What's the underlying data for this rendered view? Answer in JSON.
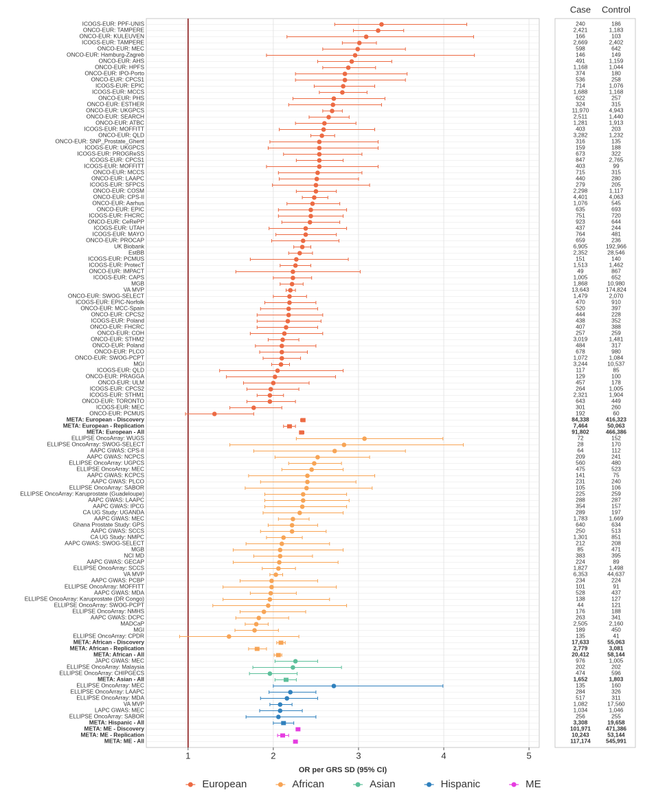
{
  "chart_data": {
    "type": "forest",
    "xlabel": "OR per GRS SD (95% CI)",
    "table_headers": [
      "Case",
      "Control"
    ],
    "xlim": [
      0.51,
      5.12
    ],
    "xticks": [
      1,
      2,
      3,
      4,
      5
    ],
    "reference_line": 1,
    "grid": true,
    "legend": "bottom",
    "series": [
      {
        "name": "European",
        "color": "#ec6a43",
        "summary_rows": 3,
        "labels": [
          "ICOGS-EUR: PPF-UNIS",
          "ONCO-EUR: TAMPERE",
          "ONCO-EUR: KULEUVEN",
          "ICOGS-EUR: TAMPERE",
          "ONCO-EUR: MEC",
          "ONCO-EUR: Hamburg-Zagreb",
          "ONCO-EUR: AHS",
          "ONCO-EUR: HPFS",
          "ONCO-EUR: IPO-Porto",
          "ONCO-EUR: CPCS1",
          "ICOGS-EUR: EPIC",
          "ICOGS-EUR: MCCS",
          "ONCO-EUR: PHS",
          "ONCO-EUR: ESTHER",
          "ONCO-EUR: UKGPCS",
          "ONCO-EUR: SEARCH",
          "ONCO-EUR: ATBC",
          "ICOGS-EUR: MOFFITT",
          "ONCO-EUR: QLD",
          "ONCO-EUR: SNP_Prostate_Ghent",
          "ICOGS-EUR: UKGPCS",
          "ICOGS-EUR: PROGReSS",
          "ICOGS-EUR: CPCS1",
          "ICOGS-EUR: MOFFITT",
          "ONCO-EUR: MCCS",
          "ONCO-EUR: LAAPC",
          "ICOGS-EUR: SFPCS",
          "ONCO-EUR: COSM",
          "ONCO-EUR: CPS-II",
          "ONCO-EUR: Aarhus",
          "ONCO-EUR: EPIC",
          "ICOGS-EUR: FHCRC",
          "ONCO-EUR: CeRePP",
          "ICOGS-EUR: UTAH",
          "ICOGS-EUR: MAYO",
          "ONCO-EUR: PROCAP",
          "UK Biobank",
          "EstBB",
          "ICOGS-EUR: PCMUS",
          "ICOGS-EUR: ProtecT",
          "ONCO-EUR: IMPACT",
          "ICOGS-EUR: CAPS",
          "MGB",
          "VA MVP",
          "ONCO-EUR: SWOG-SELECT",
          "ICOGS-EUR: EPIC-Norfolk",
          "ONCO-EUR: MCC-Spain",
          "ONCO-EUR: CPCS2",
          "ICOGS-EUR: Poland",
          "ONCO-EUR: FHCRC",
          "ONCO-EUR: COH",
          "ONCO-EUR: STHM2",
          "ONCO-EUR: Poland",
          "ONCO-EUR: PLCO",
          "ONCO-EUR: SWOG-PCPT",
          "MGI",
          "ICOGS-EUR: QLD",
          "ONCO-EUR: PRAGGA",
          "ONCO-EUR: ULM",
          "ICOGS-EUR: CPCS2",
          "ICOGS-EUR: STHM1",
          "ONCO-EUR: TORONTO",
          "ICOGS-EUR: MEC",
          "ONCO-EUR: PCMUS",
          "META: European - Discovery",
          "META: European - Replication",
          "META: European - All"
        ],
        "values": [
          3.27,
          3.23,
          3.09,
          3.01,
          2.99,
          2.96,
          2.92,
          2.88,
          2.84,
          2.84,
          2.82,
          2.81,
          2.71,
          2.7,
          2.69,
          2.65,
          2.6,
          2.59,
          2.57,
          2.54,
          2.54,
          2.54,
          2.54,
          2.54,
          2.52,
          2.51,
          2.5,
          2.5,
          2.48,
          2.46,
          2.44,
          2.44,
          2.43,
          2.38,
          2.38,
          2.35,
          2.34,
          2.31,
          2.27,
          2.26,
          2.23,
          2.23,
          2.22,
          2.2,
          2.19,
          2.19,
          2.18,
          2.18,
          2.17,
          2.15,
          2.13,
          2.11,
          2.1,
          2.1,
          2.1,
          2.09,
          2.05,
          2.02,
          2.0,
          1.97,
          1.96,
          1.96,
          1.77,
          1.31,
          2.35,
          2.19,
          2.33
        ],
        "lower": [
          2.72,
          2.94,
          2.16,
          2.81,
          2.58,
          1.92,
          2.52,
          2.58,
          2.26,
          2.26,
          2.48,
          2.54,
          2.23,
          2.18,
          2.58,
          2.42,
          2.26,
          2.07,
          2.44,
          1.96,
          1.94,
          2.12,
          2.27,
          1.92,
          2.06,
          2.07,
          1.99,
          2.27,
          2.34,
          2.16,
          2.06,
          2.06,
          2.1,
          1.95,
          2.03,
          1.98,
          2.24,
          2.18,
          1.73,
          2.08,
          1.56,
          2.0,
          2.08,
          2.15,
          2.0,
          1.9,
          1.85,
          1.81,
          1.81,
          1.81,
          1.73,
          1.94,
          1.79,
          1.84,
          1.88,
          1.98,
          1.37,
          1.45,
          1.65,
          1.69,
          1.81,
          1.69,
          1.49,
          0.97,
          2.32,
          2.12,
          2.31
        ],
        "upper": [
          4.27,
          3.53,
          4.35,
          3.21,
          3.55,
          4.36,
          3.39,
          3.2,
          3.57,
          3.55,
          3.19,
          3.1,
          3.31,
          3.27,
          2.81,
          2.89,
          2.97,
          3.19,
          2.72,
          3.23,
          3.23,
          3.04,
          2.82,
          3.23,
          3.04,
          3.0,
          3.13,
          2.74,
          2.64,
          2.78,
          2.86,
          2.82,
          2.78,
          2.86,
          2.74,
          2.77,
          2.44,
          2.46,
          2.88,
          2.44,
          3.02,
          2.45,
          2.35,
          2.26,
          2.39,
          2.5,
          2.52,
          2.58,
          2.56,
          2.52,
          2.58,
          2.3,
          2.5,
          2.4,
          2.32,
          2.19,
          2.82,
          2.73,
          2.42,
          2.3,
          2.12,
          2.26,
          2.1,
          1.77,
          2.37,
          2.26,
          2.36
        ],
        "cases": [
          "240",
          "2,421",
          "166",
          "2,669",
          "598",
          "146",
          "491",
          "1,168",
          "374",
          "536",
          "714",
          "1,688",
          "622",
          "324",
          "11,970",
          "2,511",
          "1,281",
          "403",
          "3,282",
          "316",
          "159",
          "673",
          "847",
          "403",
          "715",
          "440",
          "279",
          "2,298",
          "4,401",
          "1,076",
          "635",
          "751",
          "923",
          "437",
          "764",
          "659",
          "6,905",
          "2,352",
          "151",
          "1,513",
          "49",
          "1,005",
          "1,868",
          "13,643",
          "1,479",
          "470",
          "520",
          "444",
          "438",
          "407",
          "257",
          "3,019",
          "484",
          "678",
          "1,072",
          "3,244",
          "117",
          "129",
          "457",
          "264",
          "2,321",
          "643",
          "301",
          "192",
          "84,338",
          "7,464",
          "91,802"
        ],
        "controls": [
          "186",
          "1,183",
          "103",
          "2,402",
          "642",
          "149",
          "1,159",
          "1,044",
          "180",
          "258",
          "1,076",
          "1,168",
          "257",
          "315",
          "4,943",
          "1,440",
          "1,913",
          "203",
          "1,232",
          "135",
          "188",
          "322",
          "2,765",
          "99",
          "315",
          "280",
          "205",
          "1,117",
          "4,063",
          "545",
          "693",
          "720",
          "644",
          "244",
          "481",
          "236",
          "192,966",
          "28,546",
          "140",
          "1,462",
          "867",
          "652",
          "10,980",
          "174,824",
          "2,070",
          "910",
          "397",
          "228",
          "352",
          "388",
          "259",
          "1,481",
          "317",
          "980",
          "1,084",
          "10,537",
          "85",
          "100",
          "178",
          "1,005",
          "1,904",
          "449",
          "260",
          "60",
          "416,323",
          "50,063",
          "466,386"
        ]
      },
      {
        "name": "African",
        "color": "#f7a455",
        "summary_rows": 3,
        "labels": [
          "ELLIPSE OncoArray: WUGS",
          "ELLIPSE OncoArray: SWOG-SELECT",
          "AAPC GWAS: CPS-II",
          "AAPC GWAS: NCPCS",
          "ELLIPSE OncoArray: UGPCS",
          "ELLIPSE OncoArray: MEC",
          "AAPC GWAS: KCPCS",
          "AAPC GWAS: PLCO",
          "ELLIPSE OncoArray: SABOR",
          "ELLIPSE OncoArray: Karuprostate (Guadeloupe)",
          "AAPC GWAS: LAAPC",
          "AAPC GWAS: IPCG",
          "CA UG Study: UGANDA",
          "AAPC GWAS: MEC",
          "Ghana Prostate Study: GPS",
          "AAPC GWAS: SCCS",
          "CA UG Study: NMPC",
          "AAPC GWAS: SWOG-SELECT",
          "MGB",
          "NCI MD",
          "AAPC GWAS: GECAP",
          "ELLIPSE OncoArray: SCCS",
          "VA MVP",
          "AAPC GWAS: PCBP",
          "ELLIPSE OncoArray: MOFFITT",
          "AAPC GWAS: MDA",
          "ELLIPSE OncoArray: Karuprostate (DR Congo)",
          "ELLIPSE OncoArray: SWOG-PCPT",
          "ELLIPSE OncoArray: NMHS",
          "AAPC GWAS: DCPC",
          "MADCaP",
          "MGI",
          "ELLIPSE OncoArray: CPDR",
          "META: African - Discovery",
          "META: African - Replication",
          "META: African - All"
        ],
        "values": [
          3.07,
          2.83,
          2.72,
          2.52,
          2.48,
          2.45,
          2.4,
          2.4,
          2.39,
          2.35,
          2.35,
          2.34,
          2.31,
          2.23,
          2.22,
          2.22,
          2.12,
          2.1,
          2.08,
          2.08,
          2.07,
          2.06,
          2.03,
          1.98,
          1.98,
          1.97,
          1.96,
          1.94,
          1.89,
          1.83,
          1.8,
          1.78,
          1.48,
          2.09,
          1.81,
          2.06
        ],
        "lower": [
          2.27,
          1.49,
          1.77,
          2.02,
          2.18,
          2.1,
          1.71,
          1.85,
          1.67,
          1.9,
          1.9,
          1.9,
          1.88,
          2.06,
          1.94,
          1.85,
          1.92,
          1.68,
          1.53,
          1.77,
          1.53,
          1.87,
          1.96,
          1.61,
          1.41,
          1.73,
          1.41,
          1.29,
          1.61,
          1.56,
          1.67,
          1.55,
          0.9,
          2.04,
          1.71,
          2.01
        ],
        "upper": [
          3.99,
          4.23,
          3.55,
          3.13,
          2.8,
          2.82,
          3.19,
          2.97,
          3.16,
          2.86,
          2.89,
          2.86,
          2.82,
          2.42,
          2.52,
          2.62,
          2.34,
          2.66,
          2.82,
          2.46,
          2.76,
          2.26,
          2.11,
          2.52,
          2.74,
          2.27,
          2.66,
          2.86,
          2.38,
          2.18,
          1.94,
          2.06,
          2.3,
          2.14,
          1.92,
          2.1
        ],
        "cases": [
          "72",
          "28",
          "64",
          "209",
          "560",
          "475",
          "141",
          "231",
          "105",
          "225",
          "288",
          "354",
          "289",
          "1,783",
          "640",
          "250",
          "1,301",
          "212",
          "85",
          "383",
          "224",
          "1,827",
          "6,353",
          "234",
          "101",
          "528",
          "138",
          "44",
          "176",
          "263",
          "2,505",
          "189",
          "135",
          "17,633",
          "2,779",
          "20,412"
        ],
        "controls": [
          "152",
          "170",
          "112",
          "241",
          "480",
          "523",
          "75",
          "240",
          "106",
          "259",
          "287",
          "157",
          "197",
          "1,669",
          "634",
          "513",
          "851",
          "208",
          "471",
          "395",
          "89",
          "1,498",
          "44,637",
          "224",
          "91",
          "437",
          "127",
          "121",
          "188",
          "341",
          "2,160",
          "450",
          "41",
          "55,063",
          "3,081",
          "58,144"
        ]
      },
      {
        "name": "Asian",
        "color": "#5cbf9a",
        "summary_rows": 1,
        "labels": [
          "JAPC GWAS: MEC",
          "ELLIPSE OncoArray: Malaysia",
          "ELLIPSE OncoArray: CHIPGECS",
          "META: Asian - All"
        ],
        "values": [
          2.26,
          2.23,
          1.96,
          2.15
        ],
        "lower": [
          2.02,
          1.76,
          1.72,
          2.02
        ],
        "upper": [
          2.52,
          2.8,
          2.28,
          2.27
        ],
        "cases": [
          "976",
          "202",
          "474",
          "1,652"
        ],
        "controls": [
          "1,005",
          "202",
          "596",
          "1,803"
        ]
      },
      {
        "name": "Hispanic",
        "color": "#2f80bd",
        "summary_rows": 1,
        "labels": [
          "ELLIPSE OncoArray: MEC",
          "ELLIPSE OncoArray: LAAPC",
          "ELLIPSE OncoArray: MDA",
          "VA MVP",
          "LAPC GWAS: MEC",
          "ELLIPSE OncoArray: SABOR",
          "META: Hispanic - All"
        ],
        "values": [
          2.71,
          2.2,
          2.16,
          2.08,
          2.08,
          2.06,
          2.12
        ],
        "lower": [
          2.0,
          1.95,
          1.85,
          1.96,
          1.84,
          1.68,
          2.0
        ],
        "upper": [
          3.99,
          2.5,
          2.52,
          2.22,
          2.34,
          2.5,
          2.24
        ],
        "cases": [
          "135",
          "284",
          "517",
          "1,082",
          "1,034",
          "256",
          "3,308"
        ],
        "controls": [
          "160",
          "326",
          "311",
          "17,560",
          "1,046",
          "255",
          "19,658"
        ]
      },
      {
        "name": "ME",
        "color": "#e53ce0",
        "summary_rows": 3,
        "labels": [
          "META: ME - Discovery",
          "META: ME - Replication",
          "META: ME - All"
        ],
        "values": [
          2.29,
          2.11,
          2.26
        ],
        "lower": [
          2.27,
          2.05,
          2.24
        ],
        "upper": [
          2.31,
          2.18,
          2.28
        ],
        "cases": [
          "101,971",
          "10,243",
          "117,174"
        ],
        "controls": [
          "471,386",
          "53,144",
          "545,991"
        ]
      }
    ]
  }
}
